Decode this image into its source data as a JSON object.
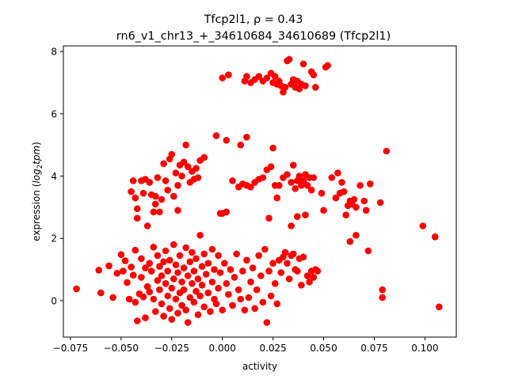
{
  "chart_data": {
    "type": "scatter",
    "title_line1": "Tfcp2l1, ρ = 0.43",
    "title_line2": "rn6_v1_chr13_+_34610684_34610689 (Tfcp2l1)",
    "xlabel": "activity",
    "ylabel_prefix": "expression (",
    "ylabel_math": "log",
    "ylabel_sub": "2",
    "ylabel_math2": "tpm",
    "ylabel_suffix": ")",
    "xlim": [
      -0.0785,
      0.1155
    ],
    "ylim": [
      -1.17,
      8.18
    ],
    "xticks": [
      -0.075,
      -0.05,
      -0.025,
      0.0,
      0.025,
      0.05,
      0.075,
      0.1
    ],
    "xtick_labels": [
      "−0.075",
      "−0.050",
      "−0.025",
      "0.000",
      "0.025",
      "0.050",
      "0.075",
      "0.100"
    ],
    "yticks": [
      0,
      2,
      4,
      6,
      8
    ],
    "ytick_labels": [
      "0",
      "2",
      "4",
      "6",
      "8"
    ],
    "point_color": "#ff0000",
    "grid": false,
    "points": [
      [
        -0.072,
        0.38
      ],
      [
        -0.061,
        0.98
      ],
      [
        -0.06,
        0.25
      ],
      [
        -0.056,
        1.12
      ],
      [
        -0.054,
        0.1
      ],
      [
        -0.052,
        0.88
      ],
      [
        -0.05,
        1.48
      ],
      [
        -0.049,
        0.95
      ],
      [
        -0.048,
        1.28
      ],
      [
        -0.047,
        0.58
      ],
      [
        -0.046,
        0.05
      ],
      [
        -0.045,
        1.08
      ],
      [
        -0.044,
        0.82
      ],
      [
        -0.043,
        1.62
      ],
      [
        -0.043,
        -0.05
      ],
      [
        -0.042,
        -0.65
      ],
      [
        -0.041,
        0.22
      ],
      [
        -0.04,
        0.75
      ],
      [
        -0.04,
        1.35
      ],
      [
        -0.039,
        0.12
      ],
      [
        -0.038,
        1.05
      ],
      [
        -0.038,
        -0.55
      ],
      [
        -0.037,
        0.45
      ],
      [
        -0.036,
        0.28
      ],
      [
        -0.036,
        1.2
      ],
      [
        -0.035,
        0.95
      ],
      [
        -0.034,
        1.72
      ],
      [
        -0.034,
        0.05
      ],
      [
        -0.033,
        -0.35
      ],
      [
        -0.032,
        0.65
      ],
      [
        -0.032,
        1.45
      ],
      [
        -0.031,
        0.35
      ],
      [
        -0.031,
        1.1
      ],
      [
        -0.03,
        -0.1
      ],
      [
        -0.03,
        0.8
      ],
      [
        -0.029,
        1.25
      ],
      [
        -0.029,
        -0.5
      ],
      [
        -0.028,
        0.55
      ],
      [
        -0.028,
        1.6
      ],
      [
        -0.027,
        0.15
      ],
      [
        -0.027,
        0.95
      ],
      [
        -0.026,
        -0.25
      ],
      [
        -0.026,
        1.3
      ],
      [
        -0.025,
        0.4
      ],
      [
        -0.025,
        -0.6
      ],
      [
        -0.024,
        0.7
      ],
      [
        -0.024,
        1.8
      ],
      [
        -0.023,
        0.05
      ],
      [
        -0.023,
        1.15
      ],
      [
        -0.022,
        -0.4
      ],
      [
        -0.022,
        0.9
      ],
      [
        -0.021,
        0.25
      ],
      [
        -0.021,
        1.45
      ],
      [
        -0.02,
        0.6
      ],
      [
        -0.02,
        -0.15
      ],
      [
        -0.019,
        1.05
      ],
      [
        -0.019,
        0.35
      ],
      [
        -0.018,
        1.7
      ],
      [
        -0.018,
        -0.3
      ],
      [
        -0.017,
        0.8
      ],
      [
        -0.017,
        -0.7
      ],
      [
        -0.016,
        1.25
      ],
      [
        -0.016,
        0.1
      ],
      [
        -0.015,
        0.55
      ],
      [
        -0.015,
        1.55
      ],
      [
        -0.014,
        -0.05
      ],
      [
        -0.014,
        0.95
      ],
      [
        -0.013,
        0.3
      ],
      [
        -0.013,
        1.35
      ],
      [
        -0.012,
        -0.45
      ],
      [
        -0.012,
        0.7
      ],
      [
        -0.011,
        2.1
      ],
      [
        -0.011,
        0.15
      ],
      [
        -0.01,
        1.1
      ],
      [
        -0.01,
        0.5
      ],
      [
        -0.009,
        -0.2
      ],
      [
        -0.009,
        1.5
      ],
      [
        -0.008,
        0.85
      ],
      [
        -0.007,
        0.25
      ],
      [
        -0.007,
        1.2
      ],
      [
        -0.006,
        -0.35
      ],
      [
        -0.005,
        0.6
      ],
      [
        -0.005,
        1.65
      ],
      [
        -0.004,
        0.05
      ],
      [
        -0.004,
        1.0
      ],
      [
        -0.003,
        -0.1
      ],
      [
        -0.002,
        0.4
      ],
      [
        -0.002,
        1.45
      ],
      [
        -0.001,
        0.9
      ],
      [
        0.0,
        -0.3
      ],
      [
        0.001,
        1.2
      ],
      [
        0.002,
        0.55
      ],
      [
        0.003,
        0.2
      ],
      [
        0.004,
        1.0
      ],
      [
        0.005,
        -0.15
      ],
      [
        0.006,
        0.75
      ],
      [
        0.007,
        1.5
      ],
      [
        0.008,
        0.35
      ],
      [
        0.009,
        0.05
      ],
      [
        0.01,
        0.95
      ],
      [
        0.011,
        -0.3
      ],
      [
        0.012,
        1.3
      ],
      [
        0.013,
        0.1
      ],
      [
        0.014,
        0.6
      ],
      [
        0.015,
        1.05
      ],
      [
        0.016,
        -0.25
      ],
      [
        0.017,
        0.35
      ],
      [
        0.018,
        1.45
      ],
      [
        0.019,
        0.8
      ],
      [
        0.02,
        -0.05
      ],
      [
        0.021,
        1.65
      ],
      [
        0.022,
        -0.7
      ],
      [
        0.023,
        0.95
      ],
      [
        0.024,
        0.15
      ],
      [
        0.025,
        1.2
      ],
      [
        0.026,
        0.55
      ],
      [
        0.027,
        -0.1
      ],
      [
        0.028,
        1.3
      ],
      [
        0.029,
        0.9
      ],
      [
        0.03,
        1.4
      ],
      [
        0.031,
        1.55
      ],
      [
        0.032,
        1.2
      ],
      [
        0.033,
        0.7
      ],
      [
        0.034,
        1.45
      ],
      [
        0.035,
        1.5
      ],
      [
        0.036,
        1.0
      ],
      [
        0.037,
        0.95
      ],
      [
        0.038,
        1.35
      ],
      [
        0.039,
        0.5
      ],
      [
        0.04,
        1.4
      ],
      [
        0.042,
        0.8
      ],
      [
        0.043,
        0.6
      ],
      [
        0.044,
        0.95
      ],
      [
        0.045,
        0.75
      ],
      [
        0.046,
        1.0
      ],
      [
        0.047,
        0.95
      ],
      [
        -0.045,
        3.5
      ],
      [
        -0.044,
        3.85
      ],
      [
        -0.043,
        3.3
      ],
      [
        -0.042,
        2.65
      ],
      [
        -0.042,
        2.95
      ],
      [
        -0.04,
        3.85
      ],
      [
        -0.039,
        3.45
      ],
      [
        -0.037,
        2.4
      ],
      [
        -0.035,
        3.4
      ],
      [
        -0.034,
        2.85
      ],
      [
        -0.033,
        3.35
      ],
      [
        -0.032,
        3.95
      ],
      [
        -0.031,
        2.85
      ],
      [
        -0.03,
        3.25
      ],
      [
        -0.029,
        4.4
      ],
      [
        -0.028,
        3.85
      ],
      [
        -0.027,
        3.55
      ],
      [
        -0.026,
        4.55
      ],
      [
        -0.025,
        4.7
      ],
      [
        -0.024,
        3.35
      ],
      [
        -0.023,
        4.1
      ],
      [
        -0.022,
        3.7
      ],
      [
        -0.021,
        4.35
      ],
      [
        -0.02,
        4.0
      ],
      [
        -0.019,
        4.45
      ],
      [
        -0.018,
        5.0
      ],
      [
        -0.017,
        4.3
      ],
      [
        -0.016,
        3.8
      ],
      [
        -0.015,
        4.15
      ],
      [
        -0.014,
        3.9
      ],
      [
        -0.013,
        4.25
      ],
      [
        -0.012,
        3.95
      ],
      [
        -0.011,
        4.5
      ],
      [
        -0.009,
        4.6
      ],
      [
        -0.022,
        2.9
      ],
      [
        -0.033,
        3.1
      ],
      [
        -0.036,
        3.8
      ],
      [
        -0.038,
        3.9
      ],
      [
        -0.003,
        5.3
      ],
      [
        0.002,
        5.15
      ],
      [
        0.009,
        5.0
      ],
      [
        0.012,
        5.25
      ],
      [
        0.0,
        2.8
      ],
      [
        0.002,
        2.85
      ],
      [
        -0.001,
        2.8
      ],
      [
        0.005,
        3.85
      ],
      [
        0.008,
        3.65
      ],
      [
        0.01,
        3.75
      ],
      [
        0.012,
        3.7
      ],
      [
        0.014,
        3.65
      ],
      [
        0.016,
        3.8
      ],
      [
        0.018,
        3.9
      ],
      [
        0.02,
        3.95
      ],
      [
        0.022,
        4.2
      ],
      [
        0.024,
        4.3
      ],
      [
        0.025,
        4.9
      ],
      [
        0.026,
        3.7
      ],
      [
        0.027,
        3.3
      ],
      [
        0.028,
        3.7
      ],
      [
        0.023,
        2.65
      ],
      [
        0.03,
        3.95
      ],
      [
        0.032,
        4.05
      ],
      [
        0.034,
        3.8
      ],
      [
        0.035,
        4.35
      ],
      [
        0.036,
        3.6
      ],
      [
        0.037,
        3.85
      ],
      [
        0.038,
        4.0
      ],
      [
        0.039,
        3.7
      ],
      [
        0.04,
        3.85
      ],
      [
        0.041,
        4.05
      ],
      [
        0.042,
        3.7
      ],
      [
        0.043,
        3.95
      ],
      [
        0.044,
        3.55
      ],
      [
        0.045,
        3.95
      ],
      [
        0.034,
        2.4
      ],
      [
        0.037,
        2.7
      ],
      [
        0.041,
        2.75
      ],
      [
        0.049,
        3.45
      ],
      [
        0.05,
        2.9
      ],
      [
        0.054,
        3.95
      ],
      [
        0.056,
        3.3
      ],
      [
        0.057,
        4.1
      ],
      [
        0.058,
        3.45
      ],
      [
        0.059,
        3.8
      ],
      [
        0.06,
        3.5
      ],
      [
        0.061,
        2.75
      ],
      [
        0.062,
        3.05
      ],
      [
        0.063,
        3.2
      ],
      [
        0.064,
        3.1
      ],
      [
        0.065,
        3.25
      ],
      [
        0.066,
        3.0
      ],
      [
        0.068,
        3.7
      ],
      [
        0.07,
        3.2
      ],
      [
        0.071,
        2.9
      ],
      [
        0.073,
        3.75
      ],
      [
        0.063,
        1.9
      ],
      [
        0.066,
        2.1
      ],
      [
        0.072,
        1.6
      ],
      [
        0.078,
        3.15
      ],
      [
        0.079,
        0.35
      ],
      [
        0.079,
        0.1
      ],
      [
        0.081,
        4.8
      ],
      [
        0.099,
        2.4
      ],
      [
        0.105,
        2.05
      ],
      [
        0.107,
        -0.2
      ],
      [
        0.0,
        7.15
      ],
      [
        0.003,
        7.25
      ],
      [
        0.011,
        7.05
      ],
      [
        0.012,
        7.2
      ],
      [
        0.014,
        7.0
      ],
      [
        0.016,
        7.1
      ],
      [
        0.018,
        7.2
      ],
      [
        0.02,
        7.05
      ],
      [
        0.022,
        7.15
      ],
      [
        0.024,
        7.3
      ],
      [
        0.025,
        7.0
      ],
      [
        0.026,
        7.2
      ],
      [
        0.027,
        6.95
      ],
      [
        0.028,
        7.05
      ],
      [
        0.029,
        6.9
      ],
      [
        0.03,
        6.7
      ],
      [
        0.031,
        6.85
      ],
      [
        0.032,
        7.7
      ],
      [
        0.033,
        7.75
      ],
      [
        0.034,
        6.95
      ],
      [
        0.035,
        7.1
      ],
      [
        0.036,
        6.85
      ],
      [
        0.037,
        7.05
      ],
      [
        0.038,
        6.8
      ],
      [
        0.039,
        6.95
      ],
      [
        0.04,
        7.6
      ],
      [
        0.041,
        6.9
      ],
      [
        0.044,
        7.35
      ],
      [
        0.045,
        7.25
      ],
      [
        0.046,
        6.85
      ],
      [
        0.051,
        7.5
      ],
      [
        0.052,
        7.55
      ]
    ]
  }
}
